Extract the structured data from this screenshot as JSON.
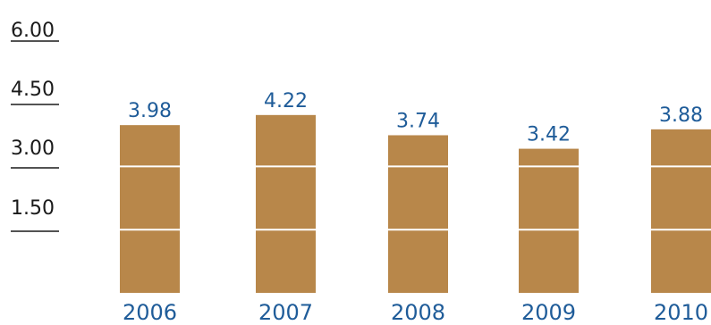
{
  "chart_data": {
    "type": "bar",
    "title": "",
    "xlabel": "",
    "ylabel": "",
    "categories": [
      "2006",
      "2007",
      "2008",
      "2009",
      "2010"
    ],
    "values": [
      3.98,
      4.22,
      3.74,
      3.42,
      3.88
    ],
    "data_labels": [
      "3.98",
      "4.22",
      "3.74",
      "3.42",
      "3.88"
    ],
    "y_ticks": [
      "1.50",
      "3.00",
      "4.50",
      "6.00"
    ],
    "ylim": [
      0,
      6
    ],
    "grid": true,
    "legend": "none",
    "colors": {
      "bar": "#B8874A",
      "gridline": "#FFFFFF",
      "label": "#1F5C99",
      "tick": "#1A1A1A"
    }
  }
}
